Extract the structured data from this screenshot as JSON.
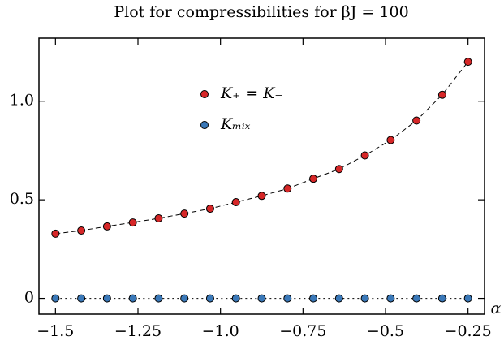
{
  "chart_data": {
    "type": "scatter",
    "title": "Plot for compressibilities for βJ = 100",
    "xlabel": "α",
    "x": [
      -1.5,
      -1.421875,
      -1.34375,
      -1.265625,
      -1.1875,
      -1.109375,
      -1.03125,
      -0.953125,
      -0.875,
      -0.796875,
      -0.71875,
      -0.640625,
      -0.5625,
      -0.484375,
      -0.40625,
      -0.328125,
      -0.25
    ],
    "series": [
      {
        "name": "K₊ = K₋",
        "color": "#d62728",
        "linestyle": "dashed",
        "values": [
          0.328,
          0.344,
          0.365,
          0.385,
          0.406,
          0.43,
          0.455,
          0.488,
          0.52,
          0.557,
          0.607,
          0.656,
          0.725,
          0.803,
          0.902,
          1.033,
          1.2
        ]
      },
      {
        "name": "Kₘᵢₓ",
        "color": "#3a78b8",
        "linestyle": "dotted",
        "values": [
          0,
          0,
          0,
          0,
          0,
          0,
          0,
          0,
          0,
          0,
          0,
          0,
          0,
          0,
          0,
          0,
          0
        ]
      }
    ],
    "xlim": [
      -1.55,
      -0.2
    ],
    "ylim": [
      -0.08,
      1.32
    ],
    "xticks": [
      {
        "value": -1.5,
        "label": "−1.5"
      },
      {
        "value": -1.25,
        "label": "−1.25"
      },
      {
        "value": -1,
        "label": "−1.0"
      },
      {
        "value": -0.75,
        "label": "−0.75"
      },
      {
        "value": -0.5,
        "label": "−0.5"
      },
      {
        "value": -0.25,
        "label": "−0.25"
      }
    ],
    "yticks": [
      0,
      0.5,
      {
        "value": 1,
        "label": "1.0"
      }
    ],
    "grid": false,
    "legend": "upper center"
  }
}
